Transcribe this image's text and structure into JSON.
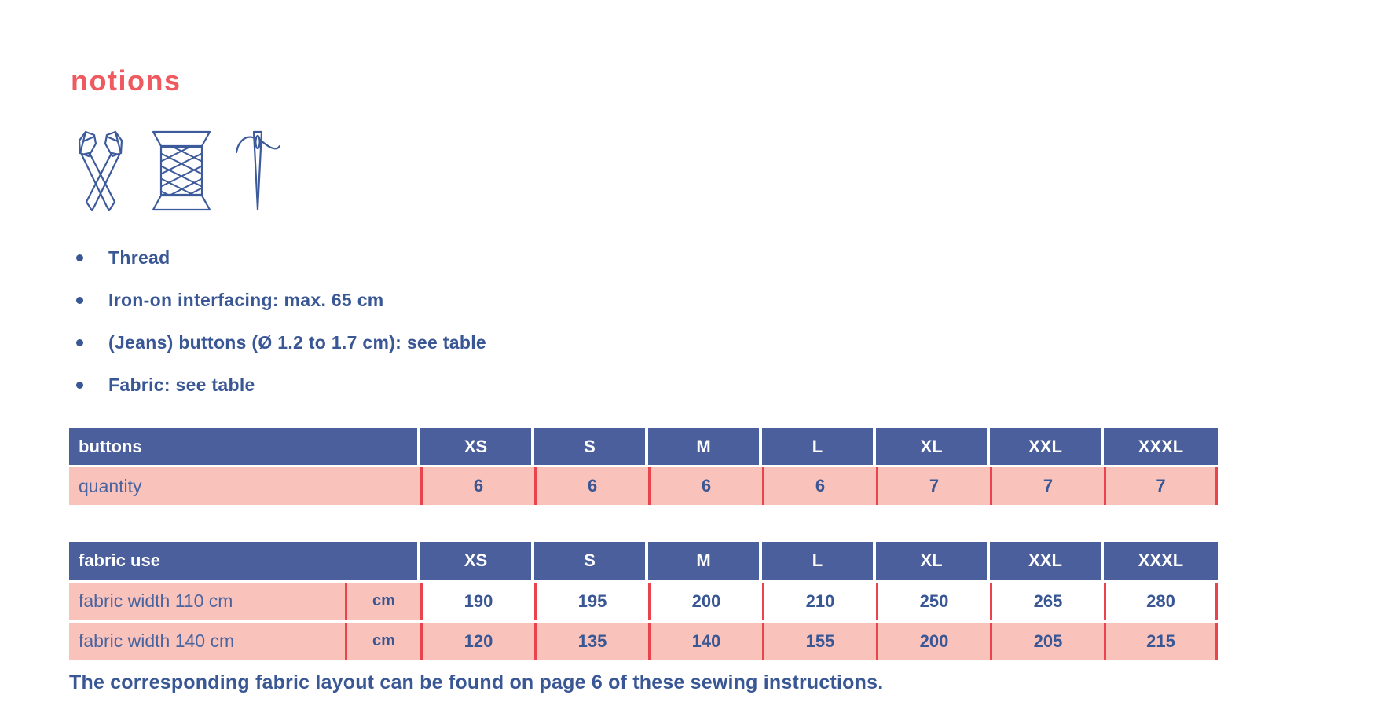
{
  "heading": "notions",
  "icons": [
    "scissors-icon",
    "thread-spool-icon",
    "needle-icon"
  ],
  "notions_list": [
    "Thread",
    "Iron-on interfacing: max. 65 cm",
    "(Jeans) buttons (Ø 1.2 to 1.7 cm): see table",
    "Fabric: see table"
  ],
  "sizes": [
    "XS",
    "S",
    "M",
    "L",
    "XL",
    "XXL",
    "XXXL"
  ],
  "buttons_table": {
    "title": "buttons",
    "rows": [
      {
        "label": "quantity",
        "values": [
          6,
          6,
          6,
          6,
          7,
          7,
          7
        ],
        "pink_values": true
      }
    ]
  },
  "fabric_table": {
    "title": "fabric use",
    "rows": [
      {
        "label": "fabric width 110 cm",
        "unit": "cm",
        "values": [
          190,
          195,
          200,
          210,
          250,
          265,
          280
        ],
        "pink_values": false
      },
      {
        "label": "fabric width 140 cm",
        "unit": "cm",
        "values": [
          120,
          135,
          140,
          155,
          200,
          205,
          215
        ],
        "pink_values": true
      }
    ]
  },
  "footer": "The corresponding fabric layout can be found on page 6 of these sewing instructions.",
  "colors": {
    "header_navy": "#4a5f9b",
    "text_navy": "#3a5795",
    "label_navy": "#4a64a0",
    "row_pink": "#f9c3bc",
    "divider_red": "#e9434e",
    "heading_coral": "#ee5a60",
    "icon_stroke": "#3d5a9a"
  }
}
